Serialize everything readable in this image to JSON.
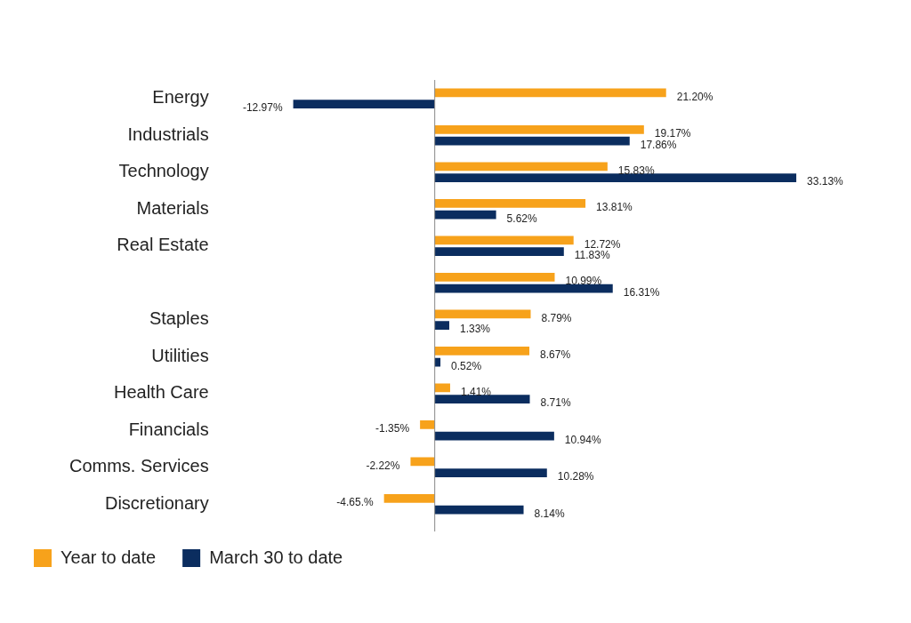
{
  "chart_data": {
    "type": "bar",
    "orientation": "horizontal",
    "categories": [
      "Energy",
      "Industrials",
      "Technology",
      "Materials",
      "Real Estate",
      null,
      "Staples",
      "Utilities",
      "Health Care",
      "Financials",
      "Comms. Services",
      "Discretionary"
    ],
    "series": [
      {
        "name": "Year to date",
        "color": "#f7a21b",
        "values": [
          21.2,
          19.17,
          15.83,
          13.81,
          12.72,
          10.99,
          8.79,
          8.67,
          1.41,
          -1.35,
          -2.22,
          -4.65
        ],
        "value_labels": [
          "21.20%",
          "19.17%",
          "15.83%",
          "13.81%",
          "12.72%",
          "10.99%",
          "8.79%",
          "8.67%",
          "1.41%",
          "-1.35%",
          "-2.22%",
          "-4.65.%"
        ]
      },
      {
        "name": "March 30 to date",
        "color": "#0b2d5f",
        "values": [
          -12.97,
          17.86,
          33.13,
          5.62,
          11.83,
          16.31,
          1.33,
          0.52,
          8.71,
          10.94,
          10.28,
          8.14
        ],
        "value_labels": [
          "-12.97%",
          "17.86%",
          "33.13%",
          "5.62%",
          "11.83%",
          "16.31%",
          "1.33%",
          "0.52%",
          "8.71%",
          "10.94%",
          "10.28%",
          "8.14%"
        ]
      }
    ],
    "tick_labels": "y",
    "grid": false,
    "legend": "bottom left"
  }
}
